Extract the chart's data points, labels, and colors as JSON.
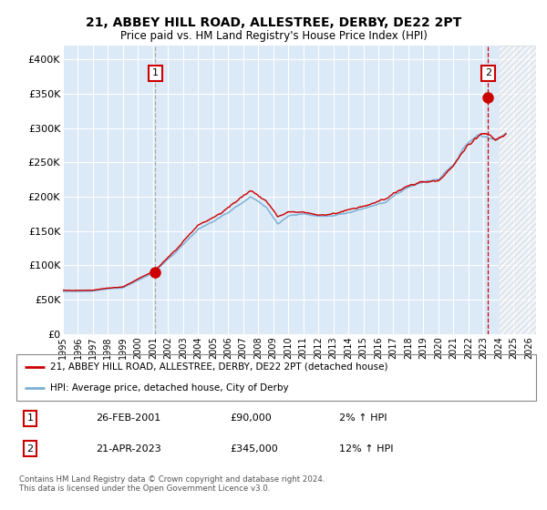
{
  "title": "21, ABBEY HILL ROAD, ALLESTREE, DERBY, DE22 2PT",
  "subtitle": "Price paid vs. HM Land Registry's House Price Index (HPI)",
  "ylim": [
    0,
    420000
  ],
  "yticks": [
    0,
    50000,
    100000,
    150000,
    200000,
    250000,
    300000,
    350000,
    400000
  ],
  "ytick_labels": [
    "£0",
    "£50K",
    "£100K",
    "£150K",
    "£200K",
    "£250K",
    "£300K",
    "£350K",
    "£400K"
  ],
  "sale1_date_num": 2001.15,
  "sale1_price": 90000,
  "sale1_label": "1",
  "sale1_date_str": "26-FEB-2001",
  "sale1_price_str": "£90,000",
  "sale1_hpi_str": "2% ↑ HPI",
  "sale2_date_num": 2023.31,
  "sale2_price": 345000,
  "sale2_label": "2",
  "sale2_date_str": "21-APR-2023",
  "sale2_price_str": "£345,000",
  "sale2_hpi_str": "12% ↑ HPI",
  "hpi_color": "#7bafd4",
  "price_color": "#cc0000",
  "sale_marker_color": "#cc0000",
  "plot_bg_color": "#dce9f7",
  "legend_label_price": "21, ABBEY HILL ROAD, ALLESTREE, DERBY, DE22 2PT (detached house)",
  "legend_label_hpi": "HPI: Average price, detached house, City of Derby",
  "footer": "Contains HM Land Registry data © Crown copyright and database right 2024.\nThis data is licensed under the Open Government Licence v3.0.",
  "xmin": 1995.0,
  "xmax": 2026.5,
  "hatch_start": 2024.0,
  "sale1_vline_color": "#aaaaaa",
  "sale2_vline_color": "#cc0000"
}
